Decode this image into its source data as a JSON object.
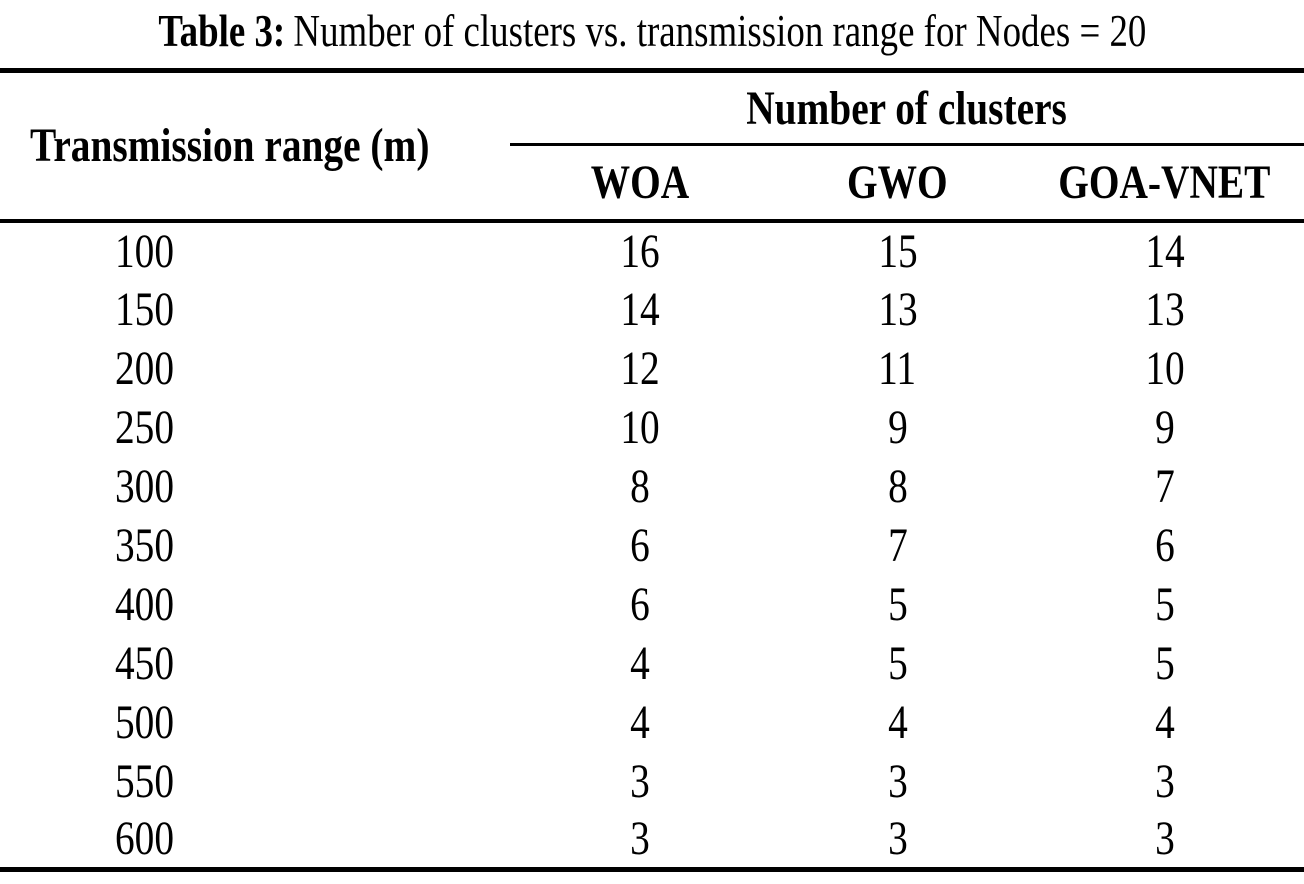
{
  "caption": {
    "label": "Table 3:",
    "text": "Number of clusters vs. transmission range for Nodes = 20"
  },
  "table": {
    "row_header": "Transmission range (m)",
    "group_header": "Number of clusters",
    "columns": [
      "WOA",
      "GWO",
      "GOA-VNET"
    ],
    "rows": [
      {
        "range": "100",
        "values": [
          "16",
          "15",
          "14"
        ]
      },
      {
        "range": "150",
        "values": [
          "14",
          "13",
          "13"
        ]
      },
      {
        "range": "200",
        "values": [
          "12",
          "11",
          "10"
        ]
      },
      {
        "range": "250",
        "values": [
          "10",
          "9",
          "9"
        ]
      },
      {
        "range": "300",
        "values": [
          "8",
          "8",
          "7"
        ]
      },
      {
        "range": "350",
        "values": [
          "6",
          "7",
          "6"
        ]
      },
      {
        "range": "400",
        "values": [
          "6",
          "5",
          "5"
        ]
      },
      {
        "range": "450",
        "values": [
          "4",
          "5",
          "5"
        ]
      },
      {
        "range": "500",
        "values": [
          "4",
          "4",
          "4"
        ]
      },
      {
        "range": "550",
        "values": [
          "3",
          "3",
          "3"
        ]
      },
      {
        "range": "600",
        "values": [
          "3",
          "3",
          "3"
        ]
      }
    ]
  },
  "colors": {
    "background": "#ffffff",
    "text": "#000000",
    "rule": "#000000"
  },
  "chart_data": {
    "type": "table",
    "title": "Table 3: Number of clusters vs. transmission range for Nodes = 20",
    "xlabel": "Transmission range (m)",
    "ylabel": "Number of clusters",
    "categories": [
      100,
      150,
      200,
      250,
      300,
      350,
      400,
      450,
      500,
      550,
      600
    ],
    "series": [
      {
        "name": "WOA",
        "values": [
          16,
          14,
          12,
          10,
          8,
          6,
          6,
          4,
          4,
          3,
          3
        ]
      },
      {
        "name": "GWO",
        "values": [
          15,
          13,
          11,
          9,
          8,
          7,
          5,
          5,
          4,
          3,
          3
        ]
      },
      {
        "name": "GOA-VNET",
        "values": [
          14,
          13,
          10,
          9,
          7,
          6,
          5,
          5,
          4,
          3,
          3
        ]
      }
    ]
  }
}
